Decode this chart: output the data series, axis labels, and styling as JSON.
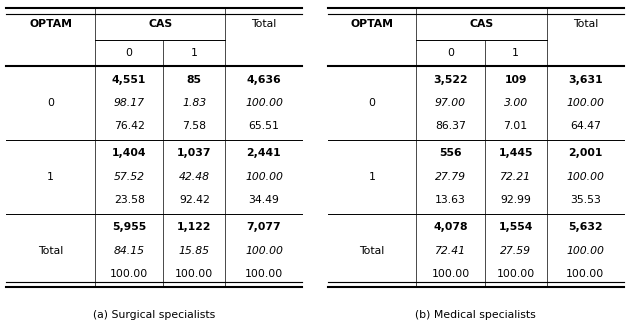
{
  "table_a": {
    "title": "(a) Surgical specialists",
    "header_col": "OPTAM",
    "header_cas": "CAS",
    "header_total": "Total",
    "cas_sub": [
      "0",
      "1"
    ],
    "rows": [
      {
        "optam": "0",
        "counts": [
          "4,551",
          "85",
          "4,636"
        ],
        "row_pct": [
          "98.17",
          "1.83",
          "100.00"
        ],
        "col_pct": [
          "76.42",
          "7.58",
          "65.51"
        ]
      },
      {
        "optam": "1",
        "counts": [
          "1,404",
          "1,037",
          "2,441"
        ],
        "row_pct": [
          "57.52",
          "42.48",
          "100.00"
        ],
        "col_pct": [
          "23.58",
          "92.42",
          "34.49"
        ]
      },
      {
        "optam": "Total",
        "counts": [
          "5,955",
          "1,122",
          "7,077"
        ],
        "row_pct": [
          "84.15",
          "15.85",
          "100.00"
        ],
        "col_pct": [
          "100.00",
          "100.00",
          "100.00"
        ]
      }
    ]
  },
  "table_b": {
    "title": "(b) Medical specialists",
    "header_col": "OPTAM",
    "header_cas": "CAS",
    "header_total": "Total",
    "cas_sub": [
      "0",
      "1"
    ],
    "rows": [
      {
        "optam": "0",
        "counts": [
          "3,522",
          "109",
          "3,631"
        ],
        "row_pct": [
          "97.00",
          "3.00",
          "100.00"
        ],
        "col_pct": [
          "86.37",
          "7.01",
          "64.47"
        ]
      },
      {
        "optam": "1",
        "counts": [
          "556",
          "1,445",
          "2,001"
        ],
        "row_pct": [
          "27.79",
          "72.21",
          "100.00"
        ],
        "col_pct": [
          "13.63",
          "92.99",
          "35.53"
        ]
      },
      {
        "optam": "Total",
        "counts": [
          "4,078",
          "1,554",
          "5,632"
        ],
        "row_pct": [
          "72.41",
          "27.59",
          "100.00"
        ],
        "col_pct": [
          "100.00",
          "100.00",
          "100.00"
        ]
      }
    ]
  },
  "bg_color": "#ffffff",
  "text_color": "#000000",
  "fontsize": 7.8,
  "lw_thick": 1.5,
  "lw_thin": 0.7,
  "lw_col": 0.5
}
